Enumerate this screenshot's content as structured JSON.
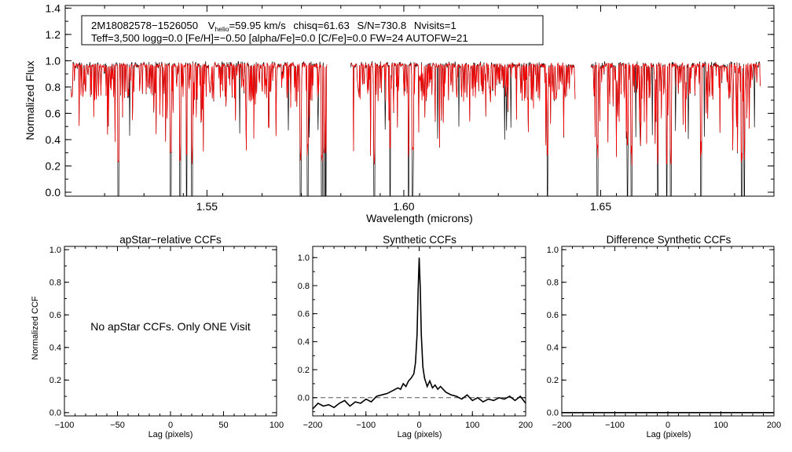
{
  "chart_data": [
    {
      "id": "spectrum",
      "type": "line",
      "title": "",
      "xlabel": "Wavelength (microns)",
      "ylabel": "Normalized Flux",
      "xlim": [
        1.514,
        1.694
      ],
      "ylim": [
        -0.03,
        1.42
      ],
      "x_ticks": [
        1.55,
        1.6,
        1.65
      ],
      "x_tick_labels": [
        "1.55",
        "1.60",
        "1.65"
      ],
      "y_ticks": [
        0.0,
        0.2,
        0.4,
        0.6,
        0.8,
        1.0,
        1.2,
        1.4
      ],
      "y_tick_labels": [
        "0.0",
        "0.2",
        "0.4",
        "0.6",
        "0.8",
        "1.0",
        "1.2",
        "1.4"
      ],
      "chips": [
        [
          1.5155,
          1.5805
        ],
        [
          1.5865,
          1.6435
        ],
        [
          1.6475,
          1.6905
        ]
      ],
      "continuum": 1.0,
      "series": [
        {
          "name": "observed",
          "color": "#000000"
        },
        {
          "name": "model",
          "color": "#ff0000"
        }
      ],
      "deep_lines": [
        1.5275,
        1.5408,
        1.5432,
        1.5448,
        1.5462,
        1.5738,
        1.5756,
        1.5792,
        1.5798,
        1.5802,
        1.5925,
        1.5965,
        1.6012,
        1.6022,
        1.6365,
        1.6492,
        1.6568,
        1.6578,
        1.6645,
        1.6668,
        1.6678,
        1.6755,
        1.6858,
        1.6865
      ],
      "annotation": {
        "line1": {
          "id": "2M18082578−1526050",
          "vhelio_label": "V",
          "vhelio_sub": "helio",
          "vhelio_value": "=59.95 km/s",
          "chisq": "chisq=61.63",
          "snr": "S/N=730.8",
          "nvisits": "Nvisits=1"
        },
        "line2": "Teff=3,500 logg=0.0 [Fe/H]=−0.50 [alpha/Fe]=0.0 [C/Fe]=0.0 FW=24 AUTOFW=21"
      }
    },
    {
      "id": "apstar-ccf",
      "type": "line",
      "title": "apStar−relative CCFs",
      "xlabel": "Lag (pixels)",
      "ylabel": "Normalized CCF",
      "xlim": [
        -100,
        100
      ],
      "ylim": [
        -0.02,
        1.02
      ],
      "x_ticks": [
        -100,
        -50,
        0,
        50,
        100
      ],
      "x_tick_labels": [
        "−100",
        "−50",
        "0",
        "50",
        "100"
      ],
      "y_ticks": [
        0.0,
        0.2,
        0.4,
        0.6,
        0.8,
        1.0
      ],
      "y_tick_labels": [
        "0.0",
        "0.2",
        "0.4",
        "0.6",
        "0.8",
        "1.0"
      ],
      "message": "No apStar CCFs.  Only ONE Visit",
      "series": []
    },
    {
      "id": "synthetic-ccf",
      "type": "line",
      "title": "Synthetic CCFs",
      "xlabel": "Lag (pixels)",
      "ylabel": "",
      "xlim": [
        -200,
        200
      ],
      "ylim": [
        -0.13,
        1.08
      ],
      "x_ticks": [
        -200,
        -100,
        0,
        100,
        200
      ],
      "x_tick_labels": [
        "−200",
        "−100",
        "0",
        "100",
        "200"
      ],
      "y_ticks": [
        0.0,
        0.2,
        0.4,
        0.6,
        0.8,
        1.0
      ],
      "y_tick_labels": [
        "0.0",
        "0.2",
        "0.4",
        "0.6",
        "0.8",
        "1.0"
      ],
      "baseline": 0.0,
      "series": [
        {
          "name": "ccf",
          "color": "#000000",
          "x": [
            -200,
            -190,
            -180,
            -170,
            -160,
            -150,
            -140,
            -130,
            -120,
            -110,
            -100,
            -90,
            -80,
            -70,
            -60,
            -50,
            -40,
            -35,
            -30,
            -25,
            -20,
            -15,
            -10,
            -7,
            -4,
            -2,
            0,
            2,
            4,
            7,
            10,
            15,
            20,
            25,
            30,
            35,
            40,
            50,
            60,
            70,
            80,
            90,
            100,
            110,
            120,
            130,
            140,
            150,
            160,
            170,
            180,
            190,
            200
          ],
          "y": [
            -0.08,
            -0.04,
            -0.06,
            -0.05,
            -0.07,
            -0.04,
            -0.02,
            -0.06,
            -0.03,
            -0.04,
            -0.01,
            -0.03,
            0.01,
            0.02,
            0.03,
            0.05,
            0.07,
            0.06,
            0.1,
            0.08,
            0.12,
            0.14,
            0.17,
            0.25,
            0.45,
            0.75,
            1.0,
            0.78,
            0.45,
            0.22,
            0.14,
            0.08,
            0.12,
            0.07,
            0.09,
            0.06,
            0.08,
            0.04,
            0.02,
            0.01,
            -0.01,
            0.02,
            -0.02,
            0.0,
            -0.03,
            -0.01,
            -0.02,
            0.0,
            -0.01,
            0.01,
            -0.02,
            0.01,
            -0.04
          ]
        }
      ]
    },
    {
      "id": "difference-ccf",
      "type": "line",
      "title": "Difference Synthetic CCFs",
      "xlabel": "Lag (pixels)",
      "ylabel": "",
      "xlim": [
        -200,
        200
      ],
      "ylim": [
        -0.02,
        1.02
      ],
      "x_ticks": [
        -200,
        -100,
        0,
        100,
        200
      ],
      "x_tick_labels": [
        "−200",
        "−100",
        "0",
        "100",
        "200"
      ],
      "y_ticks": [
        0.0,
        0.2,
        0.4,
        0.6,
        0.8,
        1.0
      ],
      "y_tick_labels": [
        "0.0",
        "0.2",
        "0.4",
        "0.6",
        "0.8",
        "1.0"
      ],
      "series": [
        {
          "name": "difference",
          "color": "#000000",
          "x": [
            -200,
            200
          ],
          "y": [
            0.0,
            0.0
          ]
        }
      ]
    }
  ]
}
